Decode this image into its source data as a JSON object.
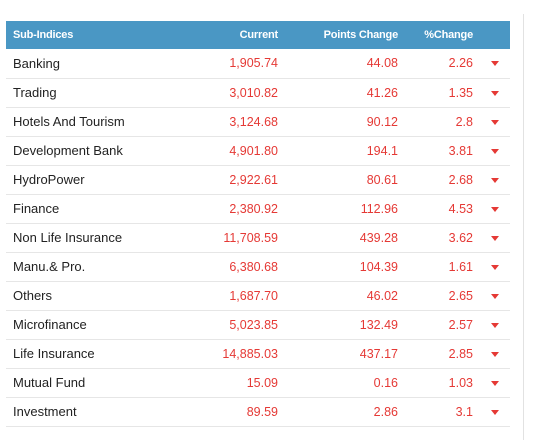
{
  "table": {
    "headers": {
      "name": "Sub-Indices",
      "current": "Current",
      "points_change": "Points Change",
      "pct_change": "%Change"
    },
    "colors": {
      "header_bg": "#4a97c4",
      "header_text": "#ffffff",
      "value_red": "#e53935",
      "name_text": "#222222"
    },
    "trend_icon": "caret-down-icon",
    "rows": [
      {
        "name": "Banking",
        "current": "1,905.74",
        "points": "44.08",
        "pct": "2.26"
      },
      {
        "name": "Trading",
        "current": "3,010.82",
        "points": "41.26",
        "pct": "1.35"
      },
      {
        "name": "Hotels And Tourism",
        "current": "3,124.68",
        "points": "90.12",
        "pct": "2.8"
      },
      {
        "name": "Development Bank",
        "current": "4,901.80",
        "points": "194.1",
        "pct": "3.81"
      },
      {
        "name": "HydroPower",
        "current": "2,922.61",
        "points": "80.61",
        "pct": "2.68"
      },
      {
        "name": "Finance",
        "current": "2,380.92",
        "points": "112.96",
        "pct": "4.53"
      },
      {
        "name": "Non Life Insurance",
        "current": "11,708.59",
        "points": "439.28",
        "pct": "3.62"
      },
      {
        "name": "Manu.& Pro.",
        "current": "6,380.68",
        "points": "104.39",
        "pct": "1.61"
      },
      {
        "name": "Others",
        "current": "1,687.70",
        "points": "46.02",
        "pct": "2.65"
      },
      {
        "name": "Microfinance",
        "current": "5,023.85",
        "points": "132.49",
        "pct": "2.57"
      },
      {
        "name": "Life Insurance",
        "current": "14,885.03",
        "points": "437.17",
        "pct": "2.85"
      },
      {
        "name": "Mutual Fund",
        "current": "15.09",
        "points": "0.16",
        "pct": "1.03"
      },
      {
        "name": "Investment",
        "current": "89.59",
        "points": "2.86",
        "pct": "3.1"
      }
    ]
  }
}
